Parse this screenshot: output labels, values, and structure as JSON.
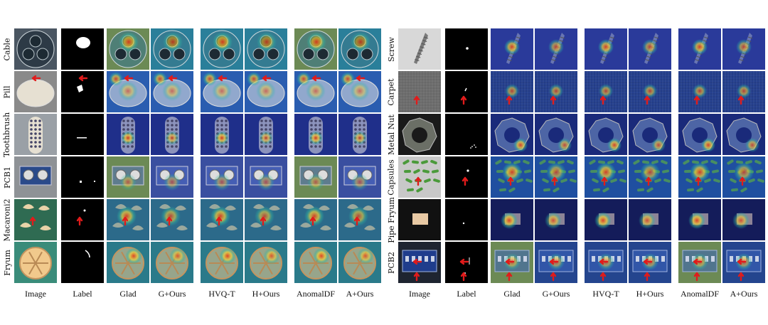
{
  "figure": {
    "columns": [
      "Image",
      "Label",
      "Glad",
      "G+Ours",
      "HVQ-T",
      "H+Ours",
      "AnomalDF",
      "A+Ours"
    ],
    "panels": [
      {
        "rows": [
          {
            "label": "Cable",
            "kind": "cable"
          },
          {
            "label": "Pill",
            "kind": "pill"
          },
          {
            "label": "Toothbrush",
            "kind": "toothbrush"
          },
          {
            "label": "PCB1",
            "kind": "pcb1"
          },
          {
            "label": "Macaroni2",
            "kind": "macaroni"
          },
          {
            "label": "Fryum",
            "kind": "fryum"
          }
        ]
      },
      {
        "rows": [
          {
            "label": "Screw",
            "kind": "screw"
          },
          {
            "label": "Carpet",
            "kind": "carpet"
          },
          {
            "label": "Metal Nut",
            "kind": "metalnut"
          },
          {
            "label": "Capsules",
            "kind": "capsules"
          },
          {
            "label": "Pipe Fryum",
            "kind": "pipefryum"
          },
          {
            "label": "PCB2",
            "kind": "pcb2"
          }
        ]
      }
    ],
    "colors": {
      "heatmap_low": "#1b2a8c",
      "heatmap_mid": "#2fb7a0",
      "heatmap_high": "#e23a1e",
      "annotation_arrow": "#e11b1b",
      "mask_background": "#000000",
      "mask_foreground": "#ffffff"
    }
  }
}
